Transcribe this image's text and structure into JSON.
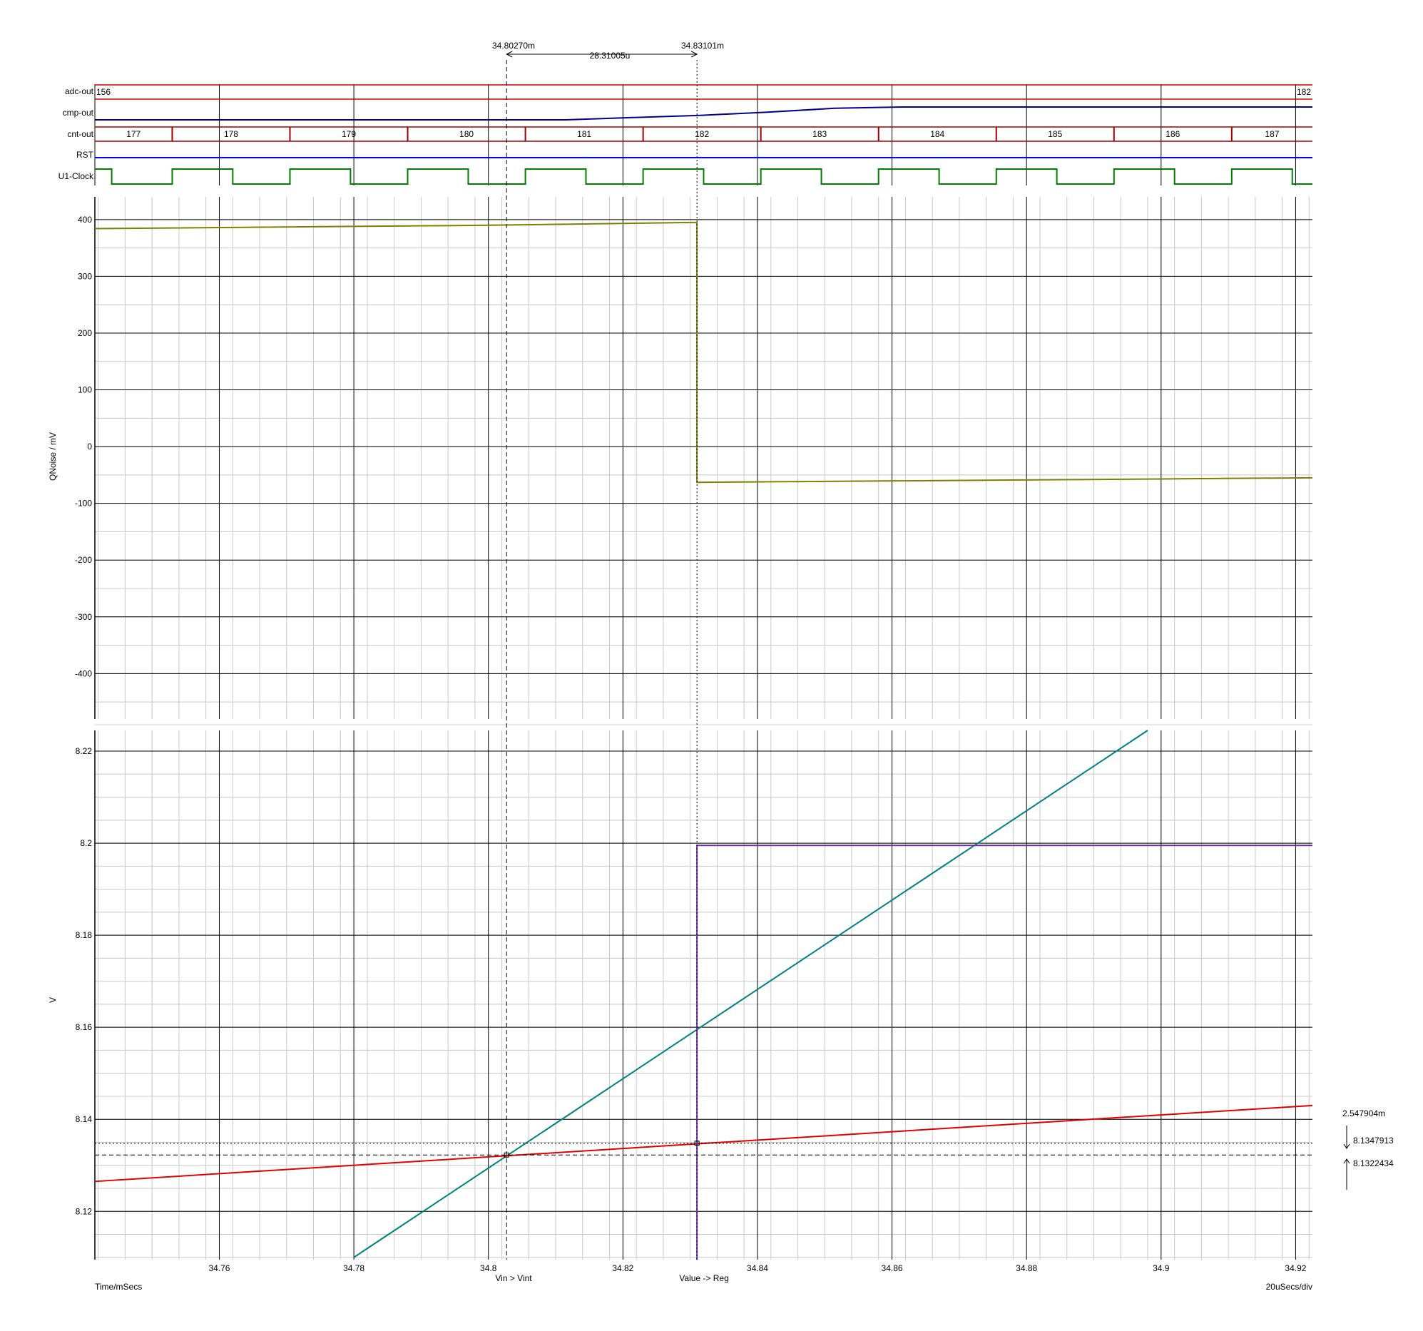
{
  "cursors": {
    "left_time": "34.80270m",
    "right_time": "34.83101m",
    "delta_time": "28.31005u",
    "left_annotation": "Vin > Vint",
    "right_annotation": "Value -> Reg",
    "delta_value": "2.547904m",
    "upper_value": "8.1347913",
    "lower_value": "8.1322434"
  },
  "x_axis": {
    "label": "Time/mSecs",
    "scale_label": "20uSecs/div"
  },
  "chart_data": [
    {
      "type": "line",
      "subtype": "digital-traces",
      "xlim": [
        34.7415,
        34.9225
      ],
      "traces": [
        {
          "name": "adc-out",
          "kind": "bus",
          "color": "#d00000",
          "segments": [
            {
              "from": 34.7415,
              "to": 34.9225,
              "value": "156 → 182",
              "start_label": "156",
              "end_label": "182"
            }
          ]
        },
        {
          "name": "cmp-out",
          "kind": "analog",
          "color": "#00008b",
          "points": [
            [
              34.7415,
              0.0
            ],
            [
              34.8115,
              0.0
            ],
            [
              34.8215,
              0.18
            ],
            [
              34.8315,
              0.35
            ],
            [
              34.8415,
              0.6
            ],
            [
              34.8515,
              0.9
            ],
            [
              34.8615,
              1.0
            ],
            [
              34.9225,
              1.0
            ]
          ]
        },
        {
          "name": "cnt-out",
          "kind": "bus",
          "color": "#a00000",
          "boundaries": [
            34.753,
            34.7705,
            34.788,
            34.8055,
            34.823,
            34.8405,
            34.858,
            34.8755,
            34.893,
            34.9105
          ],
          "labels": [
            "177",
            "178",
            "179",
            "180",
            "181",
            "182",
            "183",
            "184",
            "185",
            "186",
            "187"
          ]
        },
        {
          "name": "RST",
          "kind": "logic",
          "color": "#0000ff",
          "points": [
            [
              34.7415,
              1
            ],
            [
              34.9225,
              1
            ]
          ]
        },
        {
          "name": "U1-Clock",
          "kind": "clock",
          "color": "#008000",
          "high_intervals": [
            [
              34.7415,
              34.744
            ],
            [
              34.753,
              34.762
            ],
            [
              34.7705,
              34.7795
            ],
            [
              34.788,
              34.797
            ],
            [
              34.8055,
              34.8145
            ],
            [
              34.823,
              34.832
            ],
            [
              34.8405,
              34.8495
            ],
            [
              34.858,
              34.867
            ],
            [
              34.8755,
              34.8845
            ],
            [
              34.893,
              34.902
            ],
            [
              34.9105,
              34.9195
            ]
          ]
        }
      ]
    },
    {
      "type": "line",
      "ylabel": "QNoise / mV",
      "xlim": [
        34.7415,
        34.9225
      ],
      "ylim": [
        -480,
        440
      ],
      "yticks": [
        400,
        300,
        200,
        100,
        0,
        -100,
        -200,
        -300,
        -400
      ],
      "grid": true,
      "series": [
        {
          "color": "#808000",
          "points": [
            [
              34.7415,
              384
            ],
            [
              34.8,
              390
            ],
            [
              34.831,
              395
            ],
            [
              34.831,
              -63
            ],
            [
              34.9,
              -57
            ],
            [
              34.9225,
              -55
            ]
          ]
        }
      ]
    },
    {
      "type": "line",
      "ylabel": "V",
      "xlim": [
        34.7415,
        34.9225
      ],
      "ylim": [
        8.1095,
        8.2245
      ],
      "yticks": [
        8.22,
        8.2,
        8.18,
        8.16,
        8.14,
        8.12
      ],
      "xticks": [
        "34.76",
        "34.78",
        "34.8",
        "34.82",
        "34.84",
        "34.86",
        "34.88",
        "34.9",
        "34.92"
      ],
      "xtick_values": [
        34.76,
        34.78,
        34.8,
        34.82,
        34.84,
        34.86,
        34.88,
        34.9,
        34.92
      ],
      "grid": true,
      "series": [
        {
          "color": "#008080",
          "points": [
            [
              34.78,
              8.11
            ],
            [
              34.898,
              8.2245
            ]
          ]
        },
        {
          "color": "#e00000",
          "points": [
            [
              34.7415,
              8.1265
            ],
            [
              34.9225,
              8.143
            ]
          ]
        },
        {
          "color": "#7030a0",
          "points": [
            [
              34.831,
              8.1095
            ],
            [
              34.831,
              8.1995
            ],
            [
              34.9225,
              8.1995
            ]
          ]
        }
      ],
      "cursor_x": [
        34.8027,
        34.83101
      ],
      "cursor_y": [
        8.1347913,
        8.1322434
      ]
    }
  ]
}
